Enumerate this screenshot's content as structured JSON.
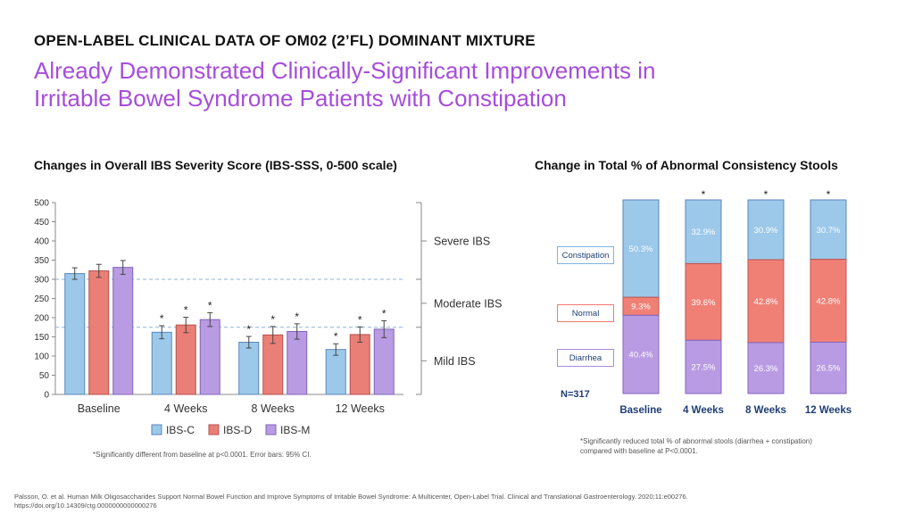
{
  "header": {
    "kicker": "OPEN-LABEL CLINICAL DATA OF OM02 (2’FL) DOMINANT MIXTURE",
    "headline_line1": "Already Demonstrated Clinically-Significant Improvements in",
    "headline_line2": "Irritable Bowel Syndrome Patients with Constipation"
  },
  "colors": {
    "headline": "#a64ddb",
    "ibs_c": "#9cc8ea",
    "ibs_d": "#ea7f77",
    "ibs_m": "#b99be3",
    "constipation": "#9cc8ea",
    "normal": "#f08076",
    "diarrhea": "#b99be3",
    "navy": "#1f3e76"
  },
  "chart_data": [
    {
      "type": "bar",
      "title": "Changes in Overall IBS Severity Score (IBS-SSS, 0-500 scale)",
      "categories": [
        "Baseline",
        "4 Weeks",
        "8 Weeks",
        "12 Weeks"
      ],
      "ylim": [
        0,
        500
      ],
      "yticks": [
        "0",
        "50",
        "100",
        "150",
        "200",
        "250",
        "300",
        "350",
        "400",
        "450",
        "500"
      ],
      "series": [
        {
          "name": "IBS-C",
          "values": [
            315,
            162,
            136,
            117
          ],
          "err": [
            15,
            17,
            15,
            15
          ]
        },
        {
          "name": "IBS-D",
          "values": [
            322,
            181,
            155,
            156
          ],
          "err": [
            17,
            20,
            22,
            20
          ]
        },
        {
          "name": "IBS-M",
          "values": [
            331,
            195,
            164,
            170
          ],
          "err": [
            18,
            18,
            20,
            22
          ]
        }
      ],
      "significance_marker": "*",
      "severity_bands": [
        {
          "label": "Severe IBS",
          "from": 300,
          "to": 500
        },
        {
          "label": "Moderate IBS",
          "from": 175,
          "to": 300
        },
        {
          "label": "Mild IBS",
          "from": 0,
          "to": 175
        }
      ],
      "reference_lines": [
        300,
        175
      ],
      "legend_position": "bottom",
      "footnote": "*Significantly different from baseline at p<0.0001. Error bars: 95% CI."
    },
    {
      "type": "bar",
      "stacked": true,
      "title": "Change in Total % of Abnormal Consistency Stools",
      "categories": [
        "Baseline",
        "4 Weeks",
        "8 Weeks",
        "12 Weeks"
      ],
      "series": [
        {
          "name": "Constipation",
          "values": [
            50.3,
            32.9,
            30.9,
            30.7
          ],
          "labels": [
            "50.3%",
            "32.9%",
            "30.9%",
            "30.7%"
          ]
        },
        {
          "name": "Normal",
          "values": [
            9.3,
            39.6,
            42.8,
            42.8
          ],
          "labels": [
            "9.3%",
            "39.6%",
            "42.8%",
            "42.8%"
          ]
        },
        {
          "name": "Diarrhea",
          "values": [
            40.4,
            27.5,
            26.3,
            26.5
          ],
          "labels": [
            "40.4%",
            "27.5%",
            "26.3%",
            "26.5%"
          ]
        }
      ],
      "significant": [
        false,
        true,
        true,
        true
      ],
      "significance_marker": "*",
      "n_label": "N=317",
      "footnote_line1": "*Significantly reduced total % of abnormal stools (diarrhea + constipation)",
      "footnote_line2": "compared with baseline at P<0.0001."
    }
  ],
  "reference": {
    "line1": "Palsson, O. et al. Human Milk Oligosaccharides Support Normal Bowel Function and Improve Symptoms of Irritable Bowel Syndrome: A Multicenter, Open-Label Trial. Clinical and Translational Gastroenterology. 2020;11:e00276.",
    "line2": "https://doi.org/10.14309/ctg.0000000000000276"
  }
}
